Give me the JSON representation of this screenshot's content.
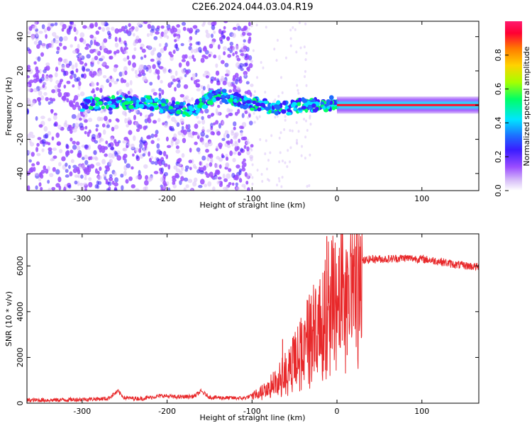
{
  "title": "C2E6.2024.044.03.04.R19",
  "colors": {
    "snr_line": "#e8282a",
    "spectrogram_scatter": "#7a2cf0",
    "colormap": [
      "#d8bff8",
      "#9b4dff",
      "#3a1cff",
      "#1e6bff",
      "#00e5ff",
      "#00ff66",
      "#a6ff00",
      "#ffd200",
      "#ff7a00",
      "#ff0033",
      "#ff1a6e"
    ]
  },
  "chart_data": [
    {
      "type": "heatmap",
      "xlabel": "Height of straight line (km)",
      "ylabel": "Frequency (Hz)",
      "xlim": [
        -365,
        167
      ],
      "ylim": [
        -50,
        49
      ],
      "x_ticks": [
        -300,
        -200,
        -100,
        0,
        100
      ],
      "y_ticks": [
        -40,
        -20,
        0,
        20,
        40
      ],
      "colorbar": {
        "label": "Normalized spectral amplitude",
        "range": [
          0,
          1
        ],
        "ticks": [
          0.0,
          0.2,
          0.4,
          0.6,
          0.8
        ]
      },
      "main_trace_frequency_hz": [
        [
          -295,
          1
        ],
        [
          -270,
          1
        ],
        [
          -240,
          2
        ],
        [
          -215,
          1
        ],
        [
          -190,
          -2
        ],
        [
          -170,
          -3
        ],
        [
          -140,
          7
        ],
        [
          -110,
          2
        ],
        [
          -80,
          -1
        ],
        [
          -60,
          -2
        ],
        [
          -40,
          0
        ],
        [
          -20,
          0
        ],
        [
          -5,
          1
        ],
        [
          0,
          0
        ],
        [
          167,
          0
        ]
      ]
    },
    {
      "type": "line",
      "xlabel": "Height of straight line (km)",
      "ylabel": "SNR (10 * v/v)",
      "xlim": [
        -365,
        167
      ],
      "ylim": [
        0,
        7400
      ],
      "x_ticks": [
        -300,
        -200,
        -100,
        0,
        100
      ],
      "y_ticks": [
        0,
        2000,
        4000,
        6000
      ],
      "series": [
        {
          "x": [
            -365,
            -330,
            -300,
            -270,
            -258,
            -250,
            -230,
            -205,
            -190,
            -168,
            -160,
            -150,
            -130,
            -110,
            -100,
            -90,
            -80,
            -70,
            -60,
            -50,
            -40,
            -30,
            -20,
            -10,
            0,
            10,
            20,
            30,
            40,
            60,
            80,
            100,
            120,
            140,
            167
          ],
          "y": [
            130,
            140,
            170,
            200,
            520,
            230,
            200,
            330,
            270,
            300,
            520,
            260,
            230,
            220,
            320,
            500,
            750,
            1100,
            1500,
            2000,
            2600,
            3300,
            4000,
            4600,
            5000,
            5500,
            5900,
            6200,
            6300,
            6300,
            6350,
            6300,
            6200,
            6050,
            5950
          ]
        }
      ],
      "spikes": [
        {
          "x": -12,
          "y": 7300
        },
        {
          "x": -64,
          "y": 2800
        },
        {
          "x": -28,
          "y": 4300
        },
        {
          "x": 12,
          "y": 2100
        }
      ]
    }
  ]
}
